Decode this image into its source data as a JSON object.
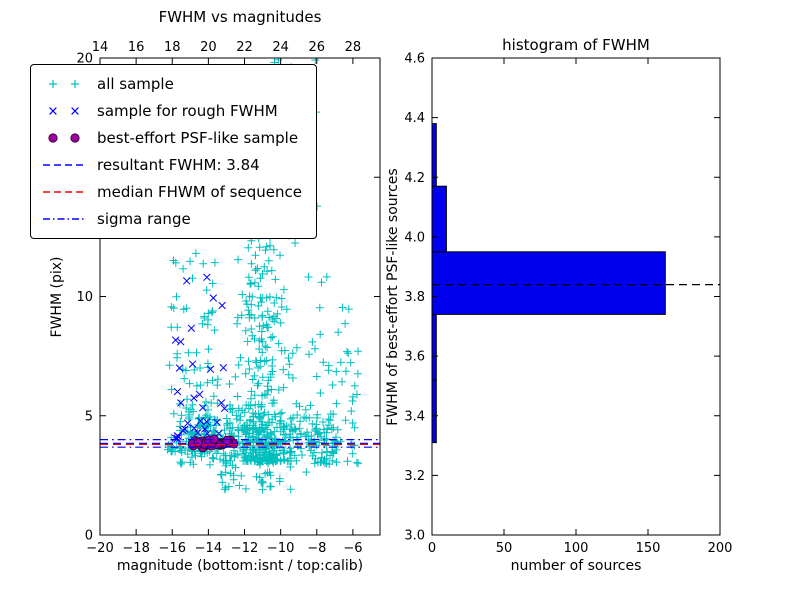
{
  "figure": {
    "background": "#ffffff"
  },
  "chart_data": [
    {
      "id": "fwhm-vs-magnitudes",
      "type": "scatter",
      "title": "FWHM vs magnitudes",
      "xlabel": "magnitude (bottom:isnt / top:calib)",
      "ylabel": "FWHM (pix)",
      "xlim": [
        -20,
        -4.5
      ],
      "ylim": [
        0,
        20
      ],
      "x_ticks_bottom": [
        -20,
        -18,
        -16,
        -14,
        -12,
        -10,
        -8,
        -6
      ],
      "x_ticks_top": [
        14,
        16,
        18,
        20,
        22,
        24,
        26,
        28
      ],
      "top_axis_offset": 34,
      "y_ticks": [
        0,
        5,
        10,
        15,
        20
      ],
      "grid": false,
      "seed": 1337,
      "series": [
        {
          "name": "all sample",
          "marker": "plus",
          "color": "#00bfbf",
          "clusters": [
            {
              "n": 320,
              "x": {
                "dist": "normal",
                "mu": -10.9,
                "sigma": 0.8,
                "clip": [
                  -13.2,
                  -8.2
                ]
              },
              "y": {
                "dist": "powtail",
                "base": 3.1,
                "scale": 9.5,
                "pow": 2.3
              }
            },
            {
              "n": 70,
              "x": {
                "dist": "normal",
                "mu": -10.4,
                "sigma": 1.0,
                "clip": [
                  -12.5,
                  -7.5
                ]
              },
              "y": {
                "dist": "uniform",
                "a": 12,
                "b": 20
              }
            },
            {
              "n": 300,
              "x": {
                "dist": "uniform",
                "a": -15.6,
                "b": -6.8
              },
              "y": {
                "dist": "normal",
                "mu": 4.15,
                "sigma": 0.55,
                "clip": [
                  2.8,
                  6.5
                ]
              }
            },
            {
              "n": 110,
              "x": {
                "dist": "uniform",
                "a": -16.3,
                "b": -13.4
              },
              "y": {
                "dist": "powtail",
                "base": 3.5,
                "scale": 8.5,
                "pow": 2.4
              }
            },
            {
              "n": 70,
              "x": {
                "dist": "uniform",
                "a": -8.6,
                "b": -5.7
              },
              "y": {
                "dist": "powtail",
                "base": 3.0,
                "scale": 8.0,
                "pow": 1.7
              }
            },
            {
              "n": 40,
              "x": {
                "dist": "uniform",
                "a": -13.5,
                "b": -8.5
              },
              "y": {
                "dist": "uniform",
                "a": 1.9,
                "b": 3.2
              }
            }
          ]
        },
        {
          "name": "sample for rough FWHM",
          "marker": "x",
          "color": "#0000ff",
          "clusters": [
            {
              "n": 34,
              "x": {
                "dist": "uniform",
                "a": -16.0,
                "b": -13.1
              },
              "y": {
                "dist": "powtail",
                "base": 4.0,
                "scale": 8.0,
                "pow": 2.0
              }
            }
          ]
        },
        {
          "name": "best-effort PSF-like sample",
          "marker": "circle",
          "color": "#a000a0",
          "edge_color": "#2a002a",
          "clusters": [
            {
              "n": 55,
              "x": {
                "dist": "normal",
                "mu": -13.9,
                "sigma": 0.55,
                "clip": [
                  -15.2,
                  -12.6
                ]
              },
              "y": {
                "dist": "normal",
                "mu": 3.85,
                "sigma": 0.07,
                "clip": [
                  3.6,
                  4.1
                ]
              }
            }
          ]
        }
      ],
      "lines": [
        {
          "name": "resultant FWHM: 3.84",
          "y": 3.84,
          "style": "dashed",
          "color": "#0000ff"
        },
        {
          "name": "median FHWM of sequence",
          "y": 3.8,
          "style": "dashed",
          "color": "#ff0000"
        },
        {
          "name": "sigma range",
          "y": [
            3.68,
            4.0
          ],
          "style": "dashdot",
          "color": "#0000ff"
        }
      ],
      "legend": {
        "position": "upper left",
        "items": [
          {
            "label": "all sample",
            "sample": "plus",
            "color": "#00bfbf"
          },
          {
            "label": "sample for rough FWHM",
            "sample": "x",
            "color": "#0000ff"
          },
          {
            "label": "best-effort PSF-like sample",
            "sample": "circle",
            "color": "#a000a0"
          },
          {
            "label": "resultant FWHM: 3.84",
            "sample": "dashed",
            "color": "#0000ff"
          },
          {
            "label": "median FHWM of sequence",
            "sample": "dashed",
            "color": "#ff0000"
          },
          {
            "label": "sigma range",
            "sample": "dashdot",
            "color": "#0000ff"
          }
        ]
      }
    },
    {
      "id": "fwhm-histogram",
      "type": "bar",
      "orientation": "horizontal",
      "title": "histogram of FWHM",
      "xlabel": "number of sources",
      "ylabel": "FWHM of best-effort PSF-like sources",
      "xlim": [
        0,
        200
      ],
      "ylim": [
        3.0,
        4.6
      ],
      "x_ticks": [
        0,
        50,
        100,
        150,
        200
      ],
      "y_ticks": [
        3.0,
        3.2,
        3.4,
        3.6,
        3.8,
        4.0,
        4.2,
        4.4,
        4.6
      ],
      "bin_edges": [
        3.31,
        3.52,
        3.74,
        3.95,
        4.17,
        4.38
      ],
      "counts": [
        3,
        3,
        162,
        10,
        3
      ],
      "bar_color": "#0000ee",
      "bar_edge_color": "#000000",
      "median_line": {
        "y": 3.84,
        "style": "dashed",
        "color": "#000000"
      }
    }
  ]
}
